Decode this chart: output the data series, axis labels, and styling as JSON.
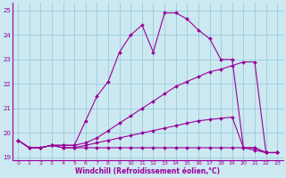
{
  "xlabel": "Windchill (Refroidissement éolien,°C)",
  "bg_color": "#cce8f0",
  "grid_color": "#99ccdd",
  "line_color": "#990099",
  "xlim": [
    -0.5,
    23.5
  ],
  "ylim": [
    18.9,
    25.3
  ],
  "yticks": [
    19,
    20,
    21,
    22,
    23,
    24,
    25
  ],
  "xticks": [
    0,
    1,
    2,
    3,
    4,
    5,
    6,
    7,
    8,
    9,
    10,
    11,
    12,
    13,
    14,
    15,
    16,
    17,
    18,
    19,
    20,
    21,
    22,
    23
  ],
  "series": [
    {
      "x": [
        0,
        1,
        2,
        3,
        4,
        5,
        6,
        7,
        8,
        9,
        10,
        11,
        12,
        13,
        14,
        15,
        16,
        17,
        18,
        19,
        20,
        21,
        22,
        23
      ],
      "y": [
        19.7,
        19.4,
        19.4,
        19.5,
        19.4,
        19.4,
        19.4,
        19.4,
        19.4,
        19.4,
        19.4,
        19.4,
        19.4,
        19.4,
        19.4,
        19.4,
        19.4,
        19.4,
        19.4,
        19.4,
        19.4,
        19.4,
        19.2,
        19.2
      ]
    },
    {
      "x": [
        0,
        1,
        2,
        3,
        4,
        5,
        6,
        7,
        8,
        9,
        10,
        11,
        12,
        13,
        14,
        15,
        16,
        17,
        18,
        19,
        20,
        21,
        22,
        23
      ],
      "y": [
        19.7,
        19.4,
        19.4,
        19.5,
        19.4,
        19.4,
        19.5,
        19.6,
        19.7,
        19.8,
        19.9,
        20.0,
        20.1,
        20.2,
        20.3,
        20.4,
        20.5,
        20.55,
        20.6,
        20.65,
        19.4,
        19.4,
        19.2,
        19.2
      ]
    },
    {
      "x": [
        0,
        1,
        2,
        3,
        4,
        5,
        6,
        7,
        8,
        9,
        10,
        11,
        12,
        13,
        14,
        15,
        16,
        17,
        18,
        19,
        20,
        21,
        22,
        23
      ],
      "y": [
        19.7,
        19.4,
        19.4,
        19.5,
        19.5,
        19.5,
        19.6,
        19.8,
        20.1,
        20.4,
        20.7,
        21.0,
        21.3,
        21.6,
        21.9,
        22.1,
        22.3,
        22.5,
        22.6,
        22.75,
        22.9,
        22.9,
        19.2,
        19.2
      ]
    },
    {
      "x": [
        0,
        1,
        2,
        3,
        4,
        5,
        6,
        7,
        8,
        9,
        10,
        11,
        12,
        13,
        14,
        15,
        16,
        17,
        18,
        19,
        20,
        21,
        22,
        23
      ],
      "y": [
        19.7,
        19.4,
        19.4,
        19.5,
        19.5,
        19.5,
        20.5,
        21.5,
        22.1,
        23.3,
        24.0,
        24.4,
        23.3,
        24.9,
        24.9,
        24.65,
        24.2,
        23.85,
        23.0,
        23.0,
        19.4,
        19.3,
        19.2,
        19.2
      ]
    }
  ]
}
